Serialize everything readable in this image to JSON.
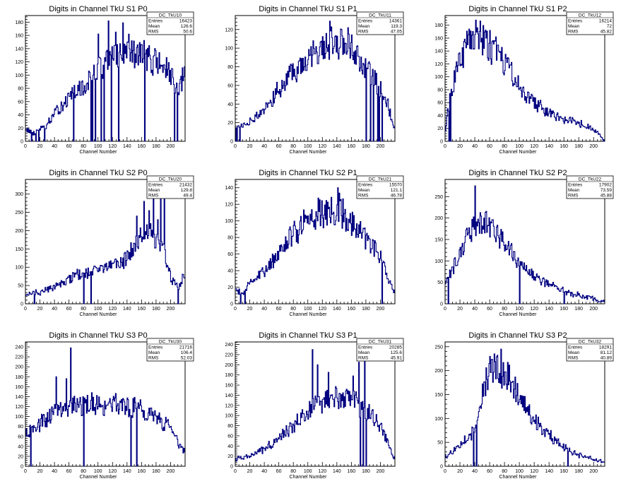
{
  "chart_data": [
    {
      "type": "bar",
      "title": "Digits in Channel TkU S1 P0",
      "xlabel": "Channel Number",
      "ylabel": "",
      "xlim": [
        0,
        220
      ],
      "ylim": [
        0,
        190
      ],
      "xticks": [
        0,
        20,
        40,
        60,
        80,
        100,
        120,
        140,
        160,
        180,
        200
      ],
      "yticks": [
        0,
        20,
        40,
        60,
        80,
        100,
        120,
        140,
        160,
        180
      ],
      "stats": {
        "name": "DC_TkU10",
        "entries": "16423",
        "mean": "126.6",
        "rms": "50.6"
      },
      "anchors": [
        [
          0,
          20
        ],
        [
          10,
          12
        ],
        [
          20,
          18
        ],
        [
          30,
          25
        ],
        [
          40,
          40
        ],
        [
          50,
          55
        ],
        [
          60,
          65
        ],
        [
          70,
          75
        ],
        [
          80,
          80
        ],
        [
          90,
          95
        ],
        [
          100,
          110
        ],
        [
          110,
          120
        ],
        [
          120,
          125
        ],
        [
          130,
          130
        ],
        [
          140,
          140
        ],
        [
          150,
          130
        ],
        [
          160,
          135
        ],
        [
          170,
          125
        ],
        [
          180,
          120
        ],
        [
          190,
          115
        ],
        [
          200,
          100
        ],
        [
          210,
          70
        ],
        [
          218,
          100
        ]
      ],
      "spikes": [
        [
          114,
          182
        ],
        [
          134,
          179
        ],
        [
          124,
          165
        ],
        [
          100,
          162
        ],
        [
          140,
          150
        ],
        [
          8,
          0
        ],
        [
          14,
          0
        ],
        [
          18,
          0
        ],
        [
          26,
          0
        ],
        [
          66,
          0
        ],
        [
          90,
          0
        ],
        [
          92,
          0
        ],
        [
          96,
          0
        ],
        [
          104,
          0
        ],
        [
          108,
          0
        ],
        [
          118,
          0
        ],
        [
          128,
          0
        ],
        [
          164,
          0
        ],
        [
          205,
          0
        ],
        [
          209,
          0
        ]
      ]
    },
    {
      "type": "bar",
      "title": "Digits in Channel TkU S1 P1",
      "xlabel": "Channel Number",
      "ylabel": "",
      "xlim": [
        0,
        220
      ],
      "ylim": [
        0,
        135
      ],
      "xticks": [
        0,
        20,
        40,
        60,
        80,
        100,
        120,
        140,
        160,
        180,
        200
      ],
      "yticks": [
        0,
        20,
        40,
        60,
        80,
        100,
        120
      ],
      "stats": {
        "name": "DC_TkU11",
        "entries": "14361",
        "mean": "119.3",
        "rms": "47.05"
      },
      "anchors": [
        [
          0,
          14
        ],
        [
          20,
          20
        ],
        [
          40,
          35
        ],
        [
          60,
          55
        ],
        [
          80,
          75
        ],
        [
          100,
          92
        ],
        [
          120,
          102
        ],
        [
          140,
          108
        ],
        [
          160,
          100
        ],
        [
          180,
          80
        ],
        [
          200,
          55
        ],
        [
          210,
          40
        ],
        [
          218,
          15
        ]
      ],
      "spikes": [
        [
          130,
          129
        ],
        [
          155,
          122
        ],
        [
          146,
          120
        ],
        [
          0,
          0
        ],
        [
          2,
          0
        ],
        [
          6,
          0
        ],
        [
          180,
          0
        ],
        [
          186,
          0
        ],
        [
          190,
          0
        ],
        [
          196,
          0
        ],
        [
          198,
          0
        ],
        [
          202,
          0
        ]
      ]
    },
    {
      "type": "bar",
      "title": "Digits in Channel TkU S1 P2",
      "xlabel": "Channel Number",
      "ylabel": "",
      "xlim": [
        0,
        215
      ],
      "ylim": [
        0,
        195
      ],
      "xticks": [
        0,
        20,
        40,
        60,
        80,
        100,
        120,
        140,
        160,
        180,
        200
      ],
      "yticks": [
        0,
        20,
        40,
        60,
        80,
        100,
        120,
        140,
        160,
        180
      ],
      "stats": {
        "name": "DC_TkU12",
        "entries": "16214",
        "mean": "72",
        "rms": "45.82"
      },
      "anchors": [
        [
          0,
          15
        ],
        [
          5,
          60
        ],
        [
          10,
          80
        ],
        [
          20,
          130
        ],
        [
          30,
          155
        ],
        [
          40,
          165
        ],
        [
          50,
          160
        ],
        [
          60,
          150
        ],
        [
          70,
          135
        ],
        [
          80,
          120
        ],
        [
          90,
          105
        ],
        [
          100,
          85
        ],
        [
          110,
          70
        ],
        [
          120,
          60
        ],
        [
          140,
          45
        ],
        [
          160,
          35
        ],
        [
          180,
          28
        ],
        [
          200,
          18
        ],
        [
          212,
          5
        ]
      ],
      "spikes": [
        [
          41,
          188
        ],
        [
          5,
          0
        ],
        [
          7,
          0
        ],
        [
          213,
          0
        ]
      ]
    },
    {
      "type": "bar",
      "title": "Digits in Channel TkU S2 P0",
      "xlabel": "Channel Number",
      "ylabel": "",
      "xlim": [
        0,
        220
      ],
      "ylim": [
        0,
        340
      ],
      "xticks": [
        0,
        20,
        40,
        60,
        80,
        100,
        120,
        140,
        160,
        180,
        200
      ],
      "yticks": [
        0,
        50,
        100,
        150,
        200,
        250,
        300
      ],
      "stats": {
        "name": "DC_TkU20",
        "entries": "21432",
        "mean": "129.8",
        "rms": "49.4"
      },
      "anchors": [
        [
          0,
          25
        ],
        [
          20,
          30
        ],
        [
          40,
          45
        ],
        [
          60,
          70
        ],
        [
          80,
          85
        ],
        [
          100,
          95
        ],
        [
          120,
          105
        ],
        [
          140,
          125
        ],
        [
          150,
          160
        ],
        [
          160,
          180
        ],
        [
          170,
          200
        ],
        [
          180,
          180
        ],
        [
          190,
          170
        ],
        [
          200,
          70
        ],
        [
          210,
          45
        ],
        [
          218,
          70
        ]
      ],
      "spikes": [
        [
          176,
          325
        ],
        [
          191,
          300
        ],
        [
          186,
          290
        ],
        [
          163,
          280
        ],
        [
          170,
          255
        ],
        [
          153,
          240
        ],
        [
          182,
          230
        ],
        [
          12,
          0
        ],
        [
          80,
          0
        ],
        [
          90,
          0
        ],
        [
          210,
          0
        ]
      ]
    },
    {
      "type": "bar",
      "title": "Digits in Channel TkU S2 P1",
      "xlabel": "Channel Number",
      "ylabel": "",
      "xlim": [
        0,
        220
      ],
      "ylim": [
        0,
        150
      ],
      "xticks": [
        0,
        20,
        40,
        60,
        80,
        100,
        120,
        140,
        160,
        180,
        200
      ],
      "yticks": [
        0,
        20,
        40,
        60,
        80,
        100,
        120,
        140
      ],
      "stats": {
        "name": "DC_TkU21",
        "entries": "15570",
        "mean": "121.1",
        "rms": "46.78"
      },
      "anchors": [
        [
          0,
          18
        ],
        [
          10,
          12
        ],
        [
          20,
          25
        ],
        [
          40,
          40
        ],
        [
          60,
          62
        ],
        [
          80,
          85
        ],
        [
          100,
          102
        ],
        [
          120,
          110
        ],
        [
          140,
          115
        ],
        [
          160,
          100
        ],
        [
          180,
          80
        ],
        [
          200,
          55
        ],
        [
          210,
          35
        ],
        [
          218,
          15
        ]
      ],
      "spikes": [
        [
          141,
          140
        ],
        [
          7,
          0
        ],
        [
          13,
          0
        ],
        [
          202,
          0
        ]
      ]
    },
    {
      "type": "bar",
      "title": "Digits in Channel TkU S2 P2",
      "xlabel": "Channel Number",
      "ylabel": "",
      "xlim": [
        0,
        215
      ],
      "ylim": [
        0,
        290
      ],
      "xticks": [
        0,
        20,
        40,
        60,
        80,
        100,
        120,
        140,
        160,
        180,
        200
      ],
      "yticks": [
        0,
        50,
        100,
        150,
        200,
        250
      ],
      "stats": {
        "name": "DC_TkU22",
        "entries": "17902",
        "mean": "73.59",
        "rms": "45.88"
      },
      "anchors": [
        [
          0,
          40
        ],
        [
          10,
          80
        ],
        [
          20,
          120
        ],
        [
          30,
          155
        ],
        [
          40,
          185
        ],
        [
          50,
          190
        ],
        [
          60,
          180
        ],
        [
          70,
          160
        ],
        [
          80,
          140
        ],
        [
          90,
          120
        ],
        [
          100,
          95
        ],
        [
          110,
          80
        ],
        [
          120,
          65
        ],
        [
          140,
          45
        ],
        [
          160,
          30
        ],
        [
          180,
          20
        ],
        [
          200,
          12
        ],
        [
          212,
          5
        ]
      ],
      "spikes": [
        [
          40,
          275
        ],
        [
          4,
          0
        ],
        [
          100,
          0
        ],
        [
          160,
          0
        ]
      ]
    },
    {
      "type": "bar",
      "title": "Digits in Channel TkU S3 P0",
      "xlabel": "Channel Number",
      "ylabel": "",
      "xlim": [
        0,
        220
      ],
      "ylim": [
        0,
        250
      ],
      "xticks": [
        0,
        20,
        40,
        60,
        80,
        100,
        120,
        140,
        160,
        180,
        200
      ],
      "yticks": [
        0,
        20,
        40,
        60,
        80,
        100,
        120,
        140,
        160,
        180,
        200,
        220,
        240
      ],
      "stats": {
        "name": "DC_TkU30",
        "entries": "21716",
        "mean": "106.4",
        "rms": "52.03"
      },
      "anchors": [
        [
          0,
          60
        ],
        [
          10,
          75
        ],
        [
          20,
          85
        ],
        [
          30,
          95
        ],
        [
          40,
          110
        ],
        [
          60,
          120
        ],
        [
          80,
          125
        ],
        [
          100,
          125
        ],
        [
          120,
          125
        ],
        [
          140,
          120
        ],
        [
          160,
          115
        ],
        [
          180,
          100
        ],
        [
          200,
          75
        ],
        [
          210,
          50
        ],
        [
          218,
          30
        ]
      ],
      "spikes": [
        [
          62,
          238
        ],
        [
          42,
          180
        ],
        [
          56,
          176
        ],
        [
          7,
          0
        ],
        [
          80,
          0
        ],
        [
          145,
          0
        ],
        [
          153,
          0
        ]
      ]
    },
    {
      "type": "bar",
      "title": "Digits in Channel TkU S3 P1",
      "xlabel": "Channel Number",
      "ylabel": "",
      "xlim": [
        0,
        220
      ],
      "ylim": [
        0,
        245
      ],
      "xticks": [
        0,
        20,
        40,
        60,
        80,
        100,
        120,
        140,
        160,
        180,
        200
      ],
      "yticks": [
        0,
        20,
        40,
        60,
        80,
        100,
        120,
        140,
        160,
        180,
        200,
        220,
        240
      ],
      "stats": {
        "name": "DC_TkU31",
        "entries": "20285",
        "mean": "125.6",
        "rms": "45.91"
      },
      "anchors": [
        [
          0,
          15
        ],
        [
          20,
          20
        ],
        [
          40,
          35
        ],
        [
          60,
          55
        ],
        [
          80,
          80
        ],
        [
          100,
          110
        ],
        [
          120,
          130
        ],
        [
          140,
          140
        ],
        [
          160,
          130
        ],
        [
          180,
          110
        ],
        [
          200,
          80
        ],
        [
          210,
          50
        ],
        [
          218,
          15
        ]
      ],
      "spikes": [
        [
          106,
          230
        ],
        [
          178,
          220
        ],
        [
          170,
          205
        ],
        [
          128,
          185
        ],
        [
          113,
          200
        ],
        [
          162,
          178
        ],
        [
          172,
          0
        ],
        [
          176,
          0
        ],
        [
          180,
          0
        ]
      ]
    },
    {
      "type": "bar",
      "title": "Digits in Channel TkU S3 P2",
      "xlabel": "Channel Number",
      "ylabel": "",
      "xlim": [
        0,
        215
      ],
      "ylim": [
        0,
        260
      ],
      "xticks": [
        0,
        20,
        40,
        60,
        80,
        100,
        120,
        140,
        160,
        180,
        200
      ],
      "yticks": [
        0,
        50,
        100,
        150,
        200,
        250
      ],
      "stats": {
        "name": "DC_TkU32",
        "entries": "18291",
        "mean": "81.12",
        "rms": "40.89"
      },
      "anchors": [
        [
          0,
          20
        ],
        [
          10,
          30
        ],
        [
          20,
          45
        ],
        [
          30,
          55
        ],
        [
          40,
          80
        ],
        [
          50,
          150
        ],
        [
          60,
          195
        ],
        [
          70,
          205
        ],
        [
          80,
          195
        ],
        [
          90,
          175
        ],
        [
          100,
          150
        ],
        [
          110,
          120
        ],
        [
          120,
          100
        ],
        [
          140,
          65
        ],
        [
          160,
          40
        ],
        [
          180,
          25
        ],
        [
          200,
          15
        ],
        [
          212,
          8
        ]
      ],
      "spikes": [
        [
          75,
          245
        ],
        [
          38,
          0
        ],
        [
          42,
          0
        ],
        [
          165,
          0
        ]
      ]
    }
  ],
  "stats_labels": {
    "entries": "Entries",
    "mean": "Mean",
    "rms": "RMS"
  },
  "line_color": "#000080"
}
